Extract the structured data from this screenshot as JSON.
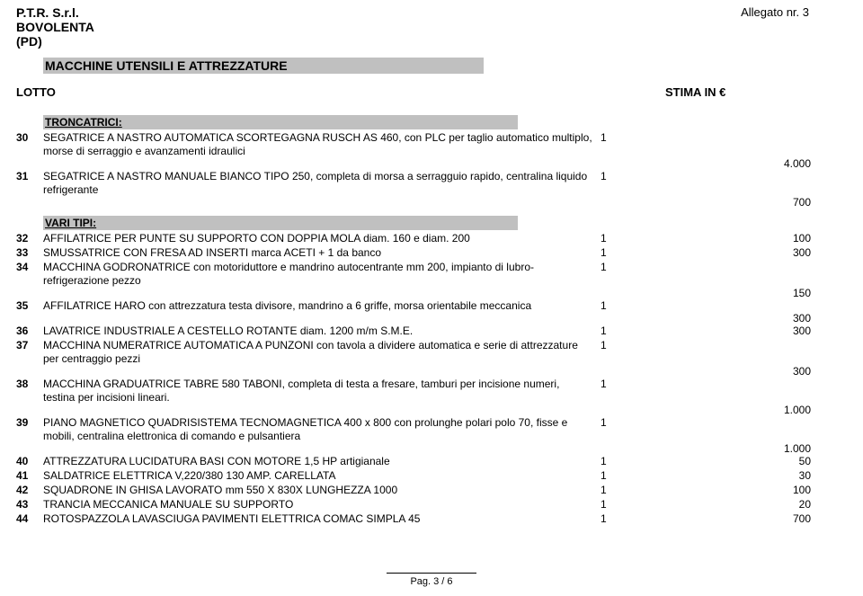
{
  "header": {
    "company": "P.T.R. S.r.l.",
    "location1": "BOVOLENTA",
    "location2": "(PD)",
    "allegato": "Allegato nr. 3",
    "title": "MACCHINE UTENSILI E ATTREZZATURE",
    "lotto": "LOTTO",
    "stima": "STIMA IN €"
  },
  "sections": [
    {
      "heading": "TRONCATRICI:",
      "rows": [
        {
          "n": "30",
          "desc": "SEGATRICE A NASTRO AUTOMATICA SCORTEGAGNA RUSCH AS 460, con PLC per taglio automatico multiplo, morse di serraggio e avanzamenti idraulici",
          "qty": "1",
          "price": "4.000",
          "priceBelow": true
        },
        {
          "n": "31",
          "desc": "SEGATRICE A NASTRO MANUALE BIANCO TIPO 250, completa di morsa a serragguio rapido, centralina liquido refrigerante",
          "qty": "1",
          "price": "700",
          "priceBelow": true
        }
      ]
    },
    {
      "heading": "VARI TIPI:",
      "rows": [
        {
          "n": "32",
          "desc": "AFFILATRICE PER PUNTE SU SUPPORTO CON DOPPIA MOLA diam. 160 e diam. 200",
          "qty": "1",
          "price": "100"
        },
        {
          "n": "33",
          "desc": "SMUSSATRICE CON FRESA AD INSERTI marca ACETI + 1 da banco",
          "qty": "1",
          "price": "300"
        },
        {
          "n": "34",
          "desc": "MACCHINA GODRONATRICE con motoriduttore e mandrino autocentrante mm 200, impianto di lubro-refrigerazione pezzo",
          "qty": "1",
          "price": "150",
          "priceBelow": true
        },
        {
          "n": "35",
          "desc": "AFFILATRICE HARO con attrezzatura testa divisore, mandrino a 6 griffe, morsa orientabile meccanica",
          "qty": "1",
          "price": "300",
          "priceBelow": true
        },
        {
          "n": "36",
          "desc": "LAVATRICE INDUSTRIALE A CESTELLO ROTANTE diam. 1200 m/m S.M.E.",
          "qty": "1",
          "price": "300"
        },
        {
          "n": "37",
          "desc": "MACCHINA NUMERATRICE AUTOMATICA A PUNZONI con tavola a dividere automatica e serie di attrezzature per centraggio pezzi",
          "qty": "1",
          "price": "300",
          "priceBelow": true
        },
        {
          "n": "38",
          "desc": "MACCHINA GRADUATRICE TABRE 580 TABONI, completa di testa a fresare, tamburi per incisione numeri, testina per incisioni lineari.",
          "qty": "1",
          "price": "1.000",
          "priceBelow": true
        },
        {
          "n": "39",
          "desc": "PIANO MAGNETICO QUADRISISTEMA TECNOMAGNETICA 400 x 800 con prolunghe polari polo 70, fisse e mobili, centralina elettronica di comando e pulsantiera",
          "qty": "1",
          "price": "1.000",
          "priceBelow": true
        },
        {
          "n": "40",
          "desc": "ATTREZZATURA LUCIDATURA BASI CON MOTORE 1,5 HP artigianale",
          "qty": "1",
          "price": "50"
        },
        {
          "n": "41",
          "desc": "SALDATRICE ELETTRICA V,220/380 130 AMP. CARELLATA",
          "qty": "1",
          "price": "30"
        },
        {
          "n": "42",
          "desc": "SQUADRONE IN GHISA LAVORATO mm 550 X 830X LUNGHEZZA 1000",
          "qty": "1",
          "price": "100"
        },
        {
          "n": "43",
          "desc": "TRANCIA MECCANICA MANUALE SU SUPPORTO",
          "qty": "1",
          "price": "20"
        },
        {
          "n": "44",
          "desc": "ROTOSPAZZOLA LAVASCIUGA PAVIMENTI ELETTRICA COMAC SIMPLA 45",
          "qty": "1",
          "price": "700"
        }
      ]
    }
  ],
  "footer": {
    "page": "Pag. 3 / 6"
  }
}
